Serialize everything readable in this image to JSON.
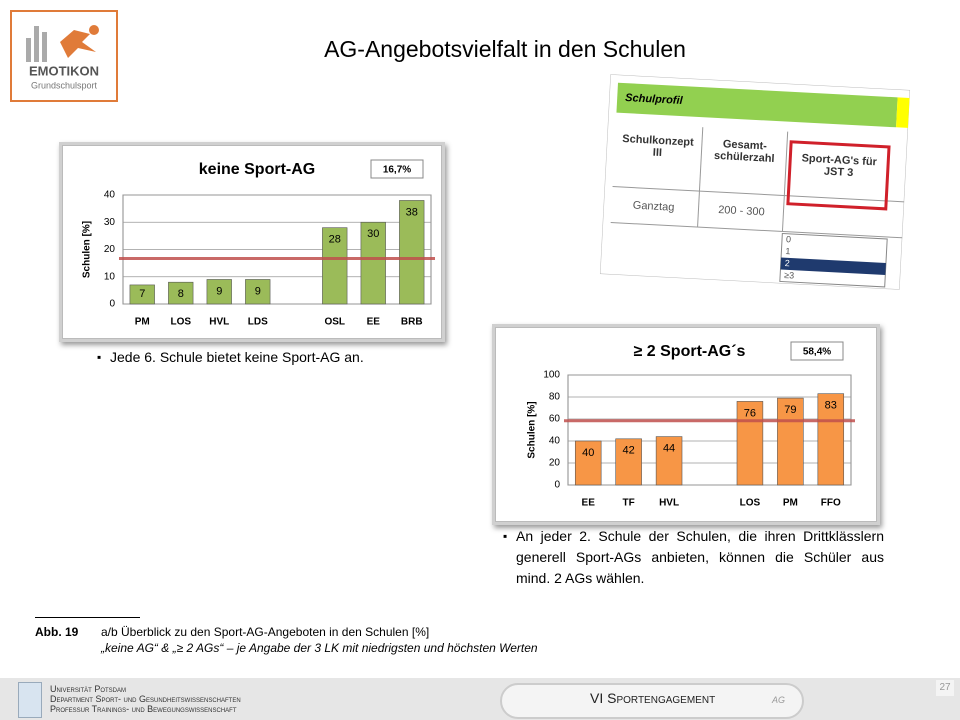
{
  "header": {
    "title": "AG-Angebotsvielfalt in den Schulen",
    "logo": {
      "name": "EMOTIKON",
      "sub": "Grundschulsport"
    }
  },
  "chart_data": [
    {
      "type": "bar",
      "title": "keine Sport-AG",
      "badge": "16,7%",
      "reference": 16.7,
      "categories": [
        "PM",
        "LOS",
        "HVL",
        "LDS",
        null,
        "OSL",
        "EE",
        "BRB"
      ],
      "values": [
        7,
        8,
        9,
        9,
        null,
        28,
        30,
        38
      ],
      "ylabel": "Schulen [%]",
      "ylim": [
        0,
        40
      ],
      "yticks": [
        0,
        10,
        20,
        30,
        40
      ],
      "color": "#9bbb59",
      "reference_color": "#c0504d",
      "grid": true
    },
    {
      "type": "bar",
      "title": "≥ 2 Sport-AG´s",
      "badge": "58,4%",
      "reference": 58.4,
      "categories": [
        "EE",
        "TF",
        "HVL",
        null,
        "LOS",
        "PM",
        "FFO"
      ],
      "values": [
        40,
        42,
        44,
        null,
        76,
        79,
        83
      ],
      "ylabel": "Schulen [%]",
      "ylim": [
        0,
        100
      ],
      "yticks": [
        0,
        20,
        40,
        60,
        80,
        100
      ],
      "color": "#f79646",
      "reference_color": "#c0504d",
      "grid": true
    }
  ],
  "schulprofil": {
    "title": "Schulprofil",
    "headers": [
      "Schulkonzept III",
      "Gesamt-schülerzahl",
      "Sport-AG's für JST 3"
    ],
    "row": [
      "Ganztag",
      "200 - 300"
    ],
    "options": [
      "0",
      "1",
      "2",
      "≥3"
    ]
  },
  "bullets": [
    "Jede 6. Schule bietet keine Sport-AG an.",
    "An jeder 2. Schule der Schulen, die ihren Drittklässlern generell Sport-AGs anbieten, können die Schüler aus mind. 2 AGs wählen."
  ],
  "caption": {
    "label": "Abb. 19",
    "line1": "a/b Überblick zu den  Sport-AG-Angeboten in den Schulen [%]",
    "line2": "„keine AG“ & „≥ 2 AGs“ – je Angabe der 3 LK mit niedrigsten und höchsten Werten"
  },
  "footer": {
    "lines": [
      "Universität Potsdam",
      "Department Sport- und Gesundheitswissenschaften",
      "Professur Trainings- und Bewegungswissenschaft"
    ],
    "section": "VI  Sportengagement",
    "tag": "AG",
    "page": "27"
  }
}
